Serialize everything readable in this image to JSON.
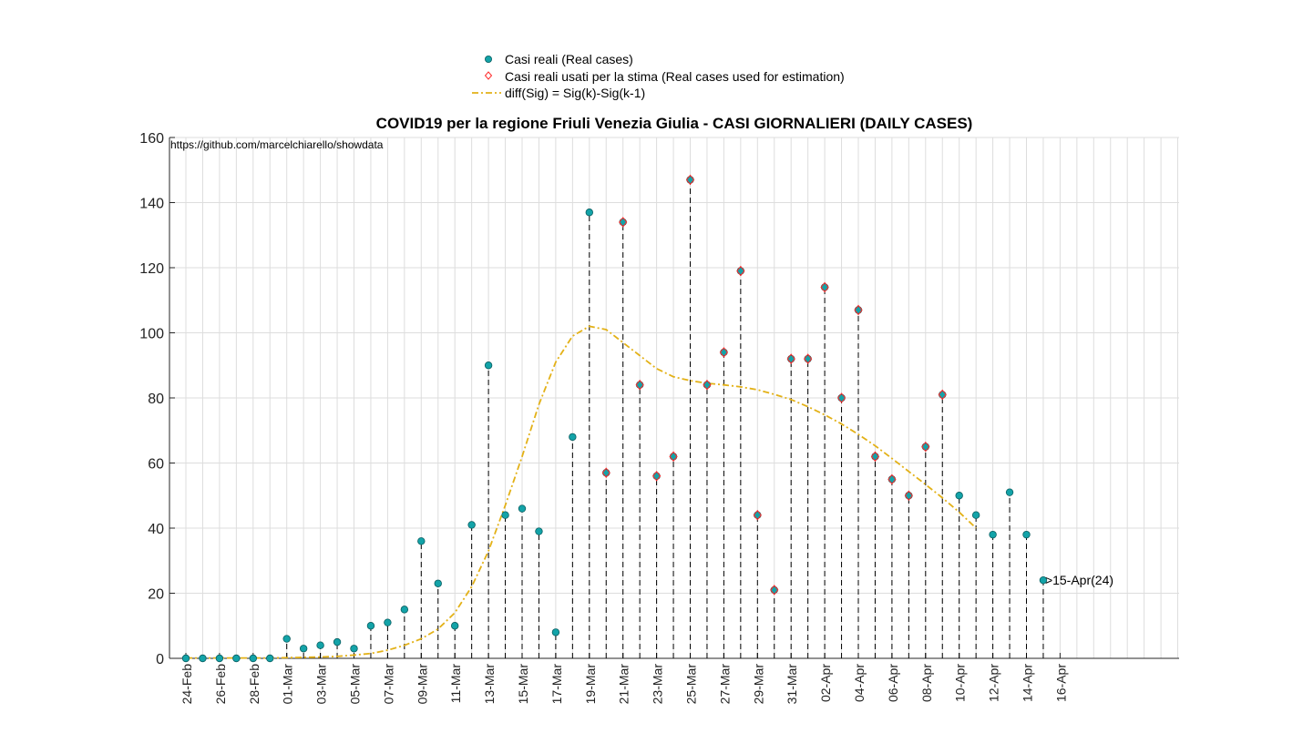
{
  "chart_data": {
    "type": "scatter",
    "title": "COVID19 per la regione Friuli Venezia Giulia - CASI GIORNALIERI (DAILY CASES)",
    "source": "https://github.com/marcelchiarello/showdata",
    "xlabel": "",
    "ylabel": "",
    "ylim": [
      0,
      160
    ],
    "yticks": [
      0,
      20,
      40,
      60,
      80,
      100,
      120,
      140,
      160
    ],
    "grid": true,
    "legend_position": "top-center",
    "x_start_label": "24-Feb",
    "xtick_labels": [
      "24-Feb",
      "26-Feb",
      "28-Feb",
      "01-Mar",
      "03-Mar",
      "05-Mar",
      "07-Mar",
      "09-Mar",
      "11-Mar",
      "13-Mar",
      "15-Mar",
      "17-Mar",
      "19-Mar",
      "21-Mar",
      "23-Mar",
      "25-Mar",
      "27-Mar",
      "29-Mar",
      "31-Mar",
      "02-Apr",
      "04-Apr",
      "06-Apr",
      "08-Apr",
      "10-Apr",
      "12-Apr",
      "14-Apr",
      "16-Apr"
    ],
    "legend": {
      "real": "Casi reali (Real cases)",
      "used": "Casi reali usati per la stima (Real cases used for estimation)",
      "diff": "diff(Sig) = Sig(k)-Sig(k-1)"
    },
    "series": [
      {
        "name": "Casi reali (Real cases)",
        "values": [
          0,
          0,
          0,
          0,
          0,
          0,
          6,
          3,
          4,
          5,
          3,
          10,
          11,
          15,
          36,
          23,
          10,
          41,
          90,
          44,
          46,
          39,
          8,
          68,
          137,
          57,
          134,
          84,
          56,
          62,
          147,
          84,
          94,
          119,
          44,
          21,
          92,
          92,
          114,
          80,
          107,
          62,
          55,
          50,
          65,
          81,
          50,
          44,
          38,
          51,
          38,
          24
        ]
      },
      {
        "name": "Casi reali usati per la stima (Real cases used for estimation)",
        "start_index": 25,
        "values": [
          57,
          134,
          84,
          56,
          62,
          147,
          84,
          94,
          119,
          44,
          21,
          92,
          92,
          114,
          80,
          107,
          62,
          55,
          50,
          65,
          81
        ]
      },
      {
        "name": "diff(Sig) = Sig(k)-Sig(k-1)",
        "values": [
          0.1,
          0.1,
          0.1,
          0.1,
          0.1,
          0.1,
          0.2,
          0.3,
          0.4,
          0.6,
          1,
          1.5,
          2.5,
          4,
          6,
          9,
          14,
          22,
          33,
          47,
          62,
          78,
          91,
          99,
          102,
          101,
          97,
          93,
          89,
          86.5,
          85.3,
          84.5,
          84,
          83.4,
          82.5,
          81.1,
          79.5,
          77.3,
          74.8,
          72,
          68.8,
          65.3,
          61.4,
          57.4,
          53.4,
          49.3,
          44.9,
          40
        ]
      }
    ],
    "annotation": {
      "index": 51,
      "text": ">15-Apr(24)"
    },
    "colors": {
      "real_fill": "#13a3a8",
      "real_edge": "#0a5e61",
      "used_edge": "#ff2a2a",
      "diff_line": "#e3b117",
      "grid": "#dddddd",
      "axis": "#262626",
      "stem": "#000000"
    }
  }
}
